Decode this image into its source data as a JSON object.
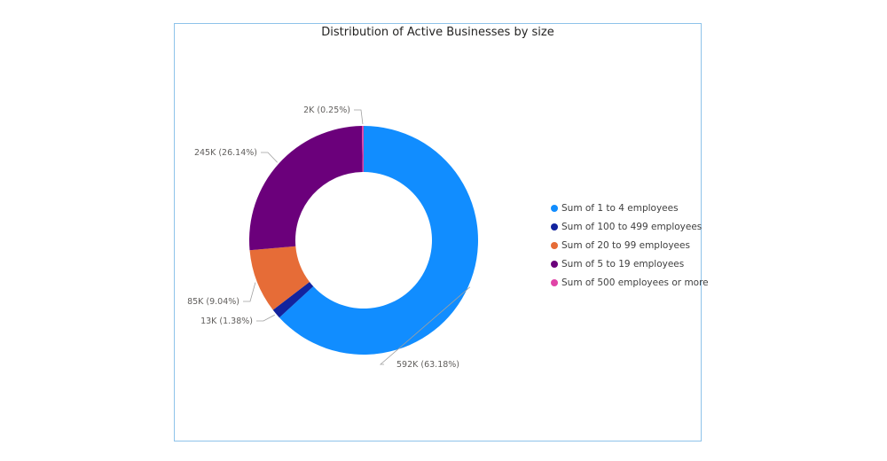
{
  "chart_data": {
    "type": "pie",
    "title": "Distribution of Active Businesses by size",
    "donut": true,
    "legend_position": "right",
    "slices": [
      {
        "name": "Sum of 1 to 4 employees",
        "value": 592,
        "percent": 63.18,
        "label": "592K (63.18%)",
        "color": "#118DFF"
      },
      {
        "name": "Sum of 100 to 499 employees",
        "value": 13,
        "percent": 1.38,
        "label": "13K (1.38%)",
        "color": "#12239E"
      },
      {
        "name": "Sum of 20 to 99 employees",
        "value": 85,
        "percent": 9.04,
        "label": "85K (9.04%)",
        "color": "#E66C37"
      },
      {
        "name": "Sum of 5 to 19 employees",
        "value": 245,
        "percent": 26.14,
        "label": "245K (26.14%)",
        "color": "#6B007B"
      },
      {
        "name": "Sum of 500 employees or more",
        "value": 2,
        "percent": 0.25,
        "label": "2K (0.25%)",
        "color": "#E044A7"
      }
    ]
  }
}
